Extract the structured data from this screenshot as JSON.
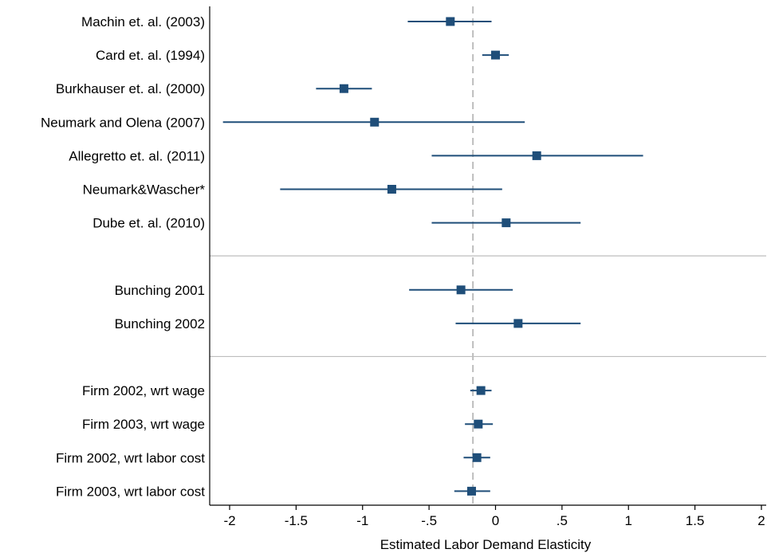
{
  "chart_data": {
    "type": "scatter",
    "subtype": "forest-plot",
    "xlabel": "Estimated Labor Demand Elasticity",
    "xlim": [
      -2.05,
      2.05
    ],
    "xticks": [
      -2,
      -1.5,
      -1,
      -0.5,
      0,
      0.5,
      1,
      1.5,
      2
    ],
    "xtick_labels": [
      "-2",
      "-1.5",
      "-1",
      "-.5",
      "0",
      ".5",
      "1",
      "1.5",
      "2"
    ],
    "reference_line": -0.17,
    "grid": false,
    "groups": [
      {
        "rows": [
          {
            "label": "Machin et. al. (2003)",
            "estimate": -0.34,
            "ci": [
              -0.66,
              -0.03
            ]
          },
          {
            "label": "Card et. al. (1994)",
            "estimate": 0.0,
            "ci": [
              -0.1,
              0.1
            ]
          },
          {
            "label": "Burkhauser et. al. (2000)",
            "estimate": -1.14,
            "ci": [
              -1.35,
              -0.93
            ]
          },
          {
            "label": "Neumark and Olena (2007)",
            "estimate": -0.91,
            "ci": [
              -2.05,
              0.22
            ]
          },
          {
            "label": "Allegretto et. al. (2011)",
            "estimate": 0.31,
            "ci": [
              -0.48,
              1.11
            ]
          },
          {
            "label": "Neumark&Wascher*",
            "estimate": -0.78,
            "ci": [
              -1.62,
              0.05
            ]
          },
          {
            "label": "Dube et. al. (2010)",
            "estimate": 0.08,
            "ci": [
              -0.48,
              0.64
            ]
          }
        ]
      },
      {
        "rows": [
          {
            "label": "Bunching 2001",
            "estimate": -0.26,
            "ci": [
              -0.65,
              0.13
            ]
          },
          {
            "label": "Bunching 2002",
            "estimate": 0.17,
            "ci": [
              -0.3,
              0.64
            ]
          }
        ]
      },
      {
        "rows": [
          {
            "label": "Firm 2002, wrt wage",
            "estimate": -0.11,
            "ci": [
              -0.19,
              -0.03
            ]
          },
          {
            "label": "Firm 2003, wrt wage",
            "estimate": -0.13,
            "ci": [
              -0.23,
              -0.02
            ]
          },
          {
            "label": "Firm 2002, wrt labor cost",
            "estimate": -0.14,
            "ci": [
              -0.24,
              -0.04
            ]
          },
          {
            "label": "Firm 2003, wrt labor cost",
            "estimate": -0.18,
            "ci": [
              -0.31,
              -0.04
            ]
          }
        ]
      }
    ],
    "colors": {
      "marker": "#1f4e79",
      "ci_line": "#1f4e79",
      "reference": "#bdbdbd",
      "separator": "#bdbdbd",
      "axis": "#000000"
    }
  }
}
